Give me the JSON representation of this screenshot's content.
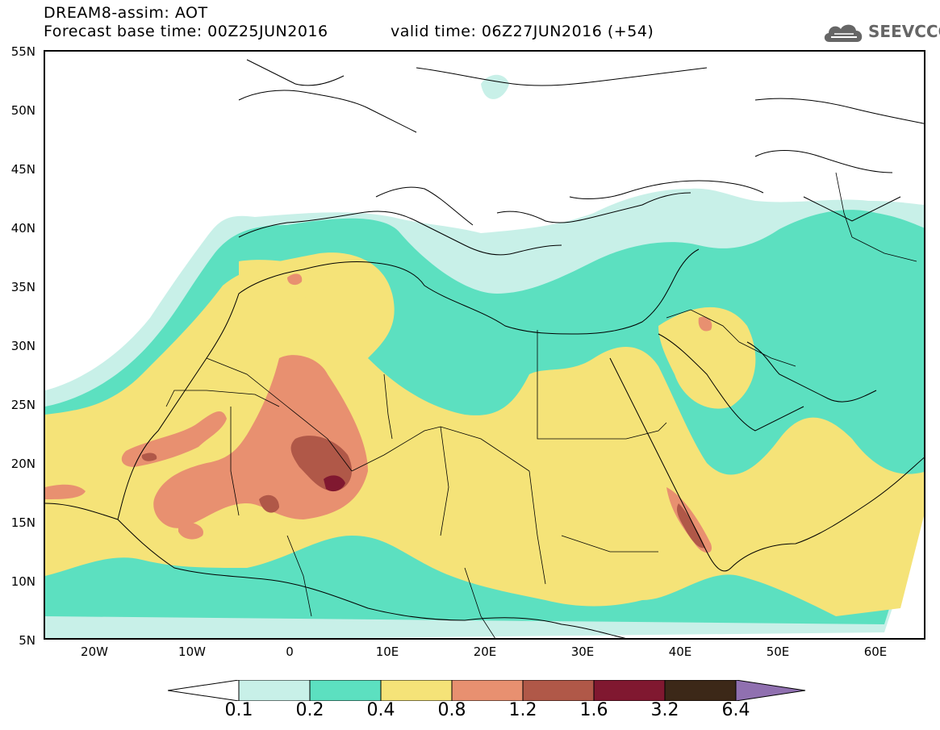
{
  "header": {
    "title_line1": "DREAM8-assim: AOT",
    "title_line2": "Forecast base time: 00Z25JUN2016",
    "valid_time": "valid time: 06Z27JUN2016 (+54)",
    "logo_text": "SEEVCCC"
  },
  "axes": {
    "lat_labels": [
      "55N",
      "50N",
      "45N",
      "40N",
      "35N",
      "30N",
      "25N",
      "20N",
      "15N",
      "10N",
      "5N"
    ],
    "lon_labels": [
      "20W",
      "10W",
      "0",
      "10E",
      "20E",
      "30E",
      "40E",
      "50E",
      "60E"
    ]
  },
  "colorbar": {
    "labels": [
      "0.1",
      "0.2",
      "0.4",
      "0.8",
      "1.2",
      "1.6",
      "3.2",
      "6.4"
    ],
    "colors": [
      "#c8f0e8",
      "#5ce0c0",
      "#f5e378",
      "#e89070",
      "#b05848",
      "#801830",
      "#3c2818",
      "#9070b0"
    ]
  }
}
